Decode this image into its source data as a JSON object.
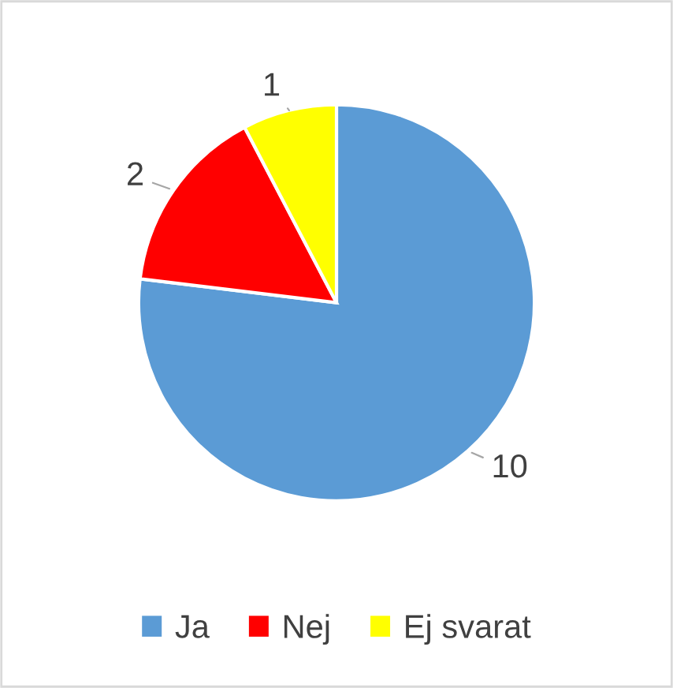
{
  "chart_data": {
    "type": "pie",
    "categories": [
      "Ja",
      "Nej",
      "Ej svarat"
    ],
    "values": [
      10,
      2,
      1
    ],
    "colors": [
      "#5b9bd5",
      "#ff0000",
      "#ffff00"
    ],
    "data_labels": true,
    "legend": "bottom"
  }
}
